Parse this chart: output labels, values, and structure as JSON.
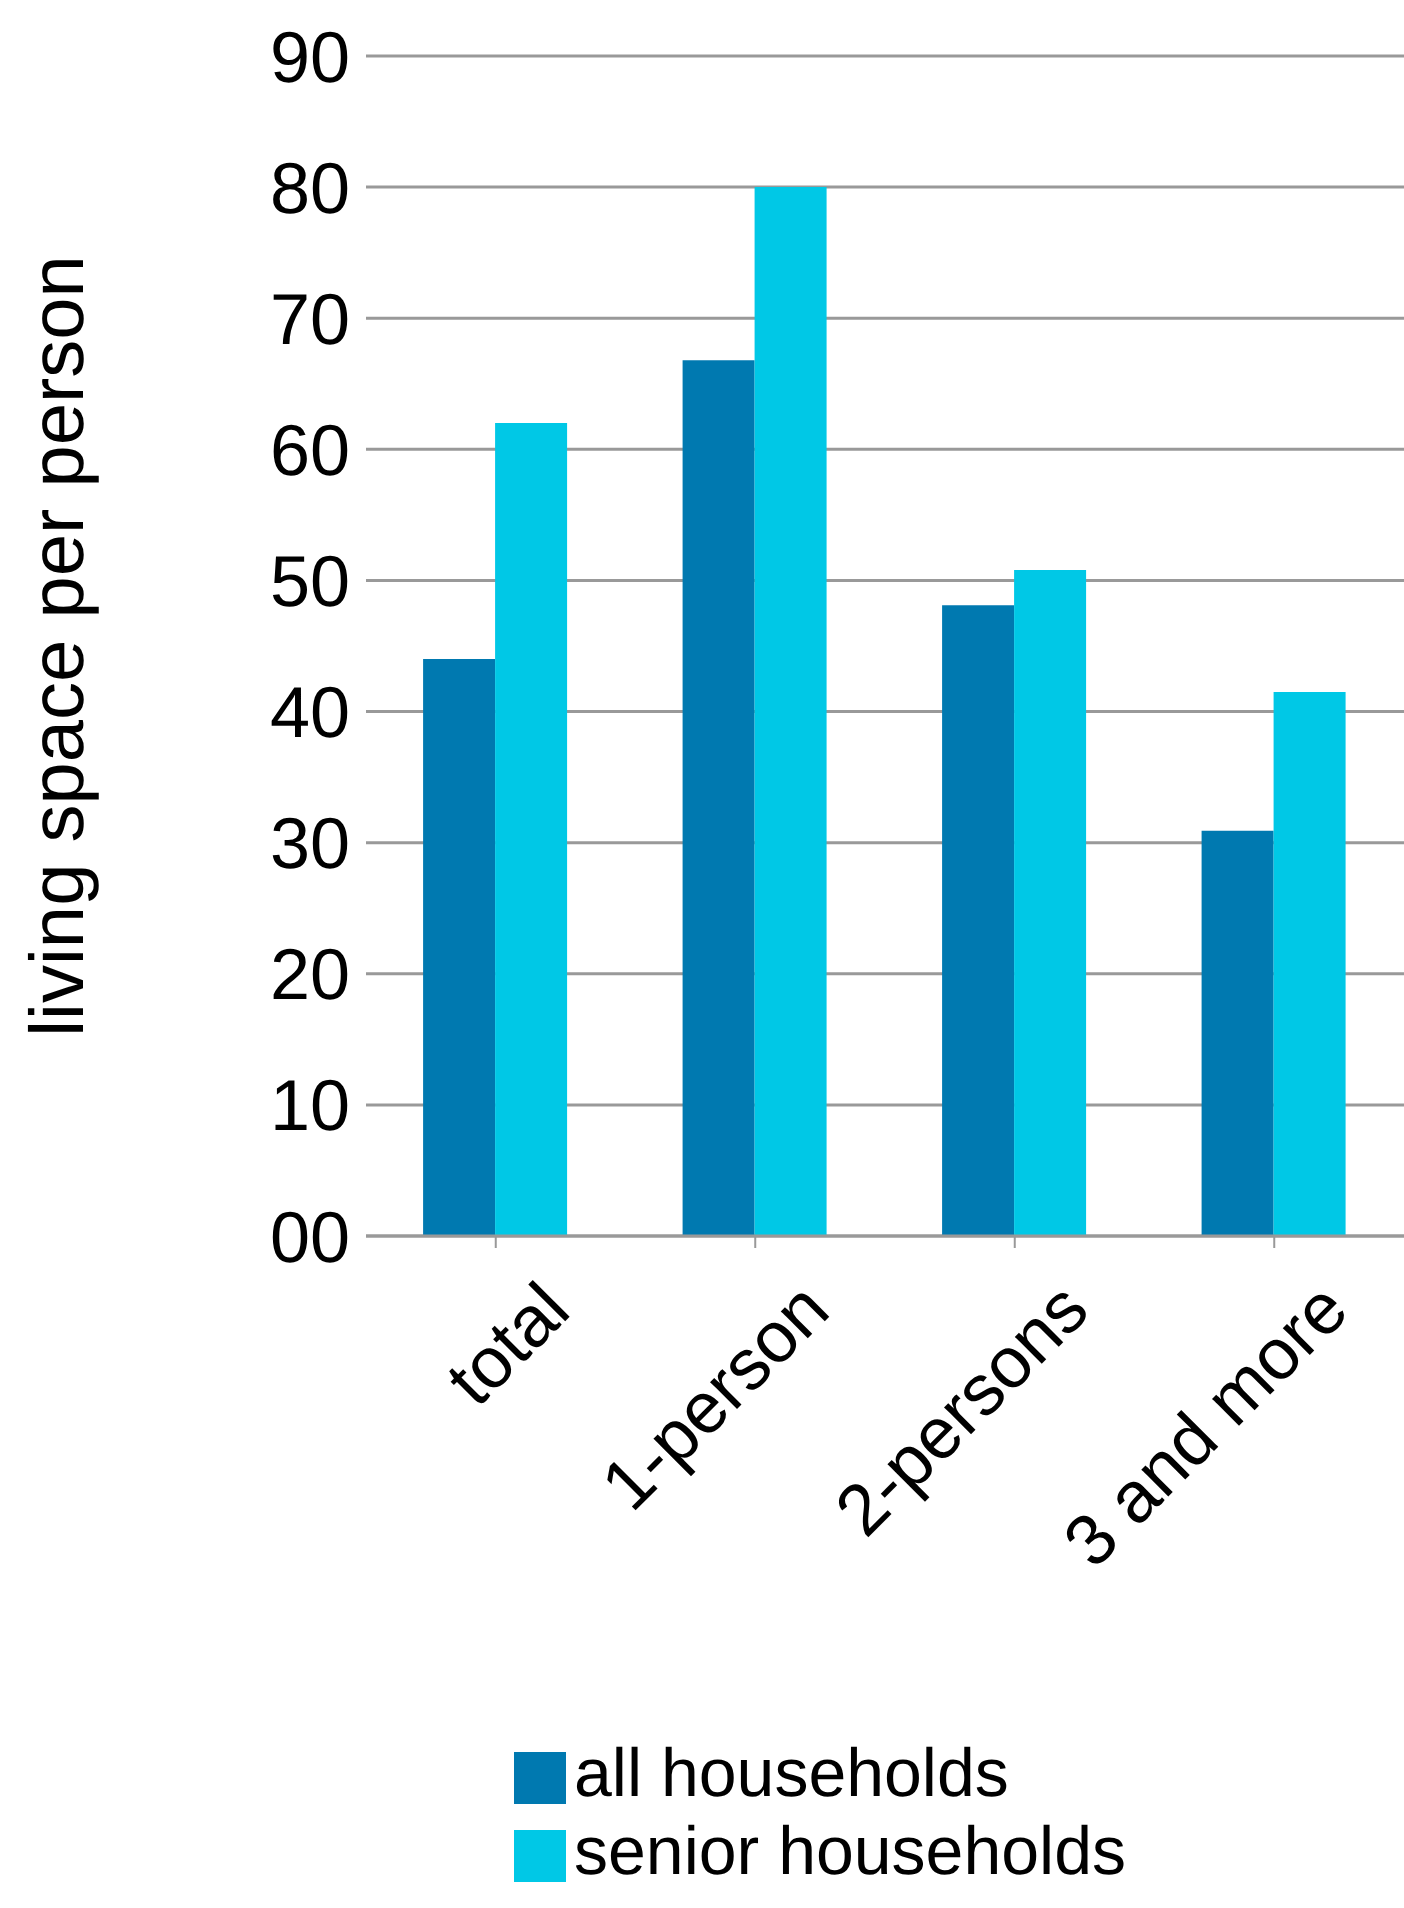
{
  "chart_data": {
    "type": "bar",
    "ylabel": "living space per person",
    "categories": [
      "total",
      "1-person",
      "2-persons",
      "3 and more"
    ],
    "series": [
      {
        "name": "all households",
        "color": "#0079b0",
        "values": [
          44,
          66.8,
          48.1,
          30.9
        ]
      },
      {
        "name": "senior households",
        "color": "#00c8e6",
        "values": [
          62,
          80,
          50.8,
          41.5
        ]
      }
    ],
    "ylim": [
      0,
      90
    ],
    "yticks": [
      {
        "value": 0,
        "label": "00"
      },
      10,
      20,
      30,
      40,
      50,
      60,
      70,
      80,
      90
    ],
    "grid": "y",
    "legend": "bottom"
  }
}
